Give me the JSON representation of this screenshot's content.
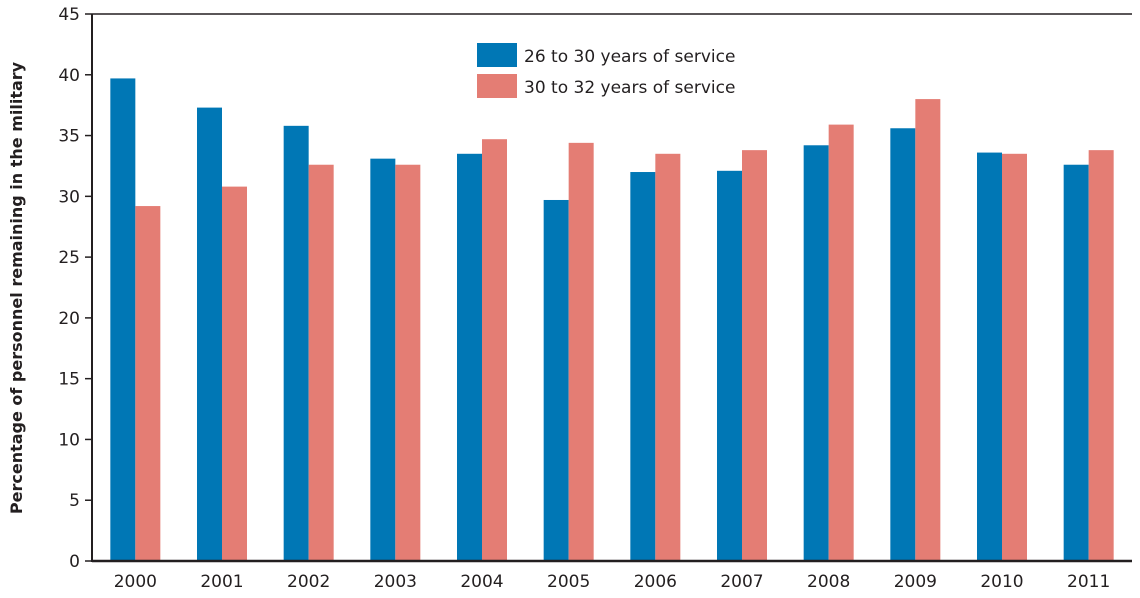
{
  "chart_data": {
    "type": "bar",
    "title": "",
    "xlabel": "",
    "ylabel": "Percentage of personnel remaining in the military",
    "ylim": [
      0,
      45
    ],
    "yticks": [
      0,
      5,
      10,
      15,
      20,
      25,
      30,
      35,
      40,
      45
    ],
    "grid": false,
    "legend_position": "top-center",
    "categories": [
      "2000",
      "2001",
      "2002",
      "2003",
      "2004",
      "2005",
      "2006",
      "2007",
      "2008",
      "2009",
      "2010",
      "2011"
    ],
    "series": [
      {
        "name": "26 to 30 years of service",
        "color": "#0077b5",
        "values": [
          39.7,
          37.3,
          35.8,
          33.1,
          33.5,
          29.7,
          32.0,
          32.1,
          34.2,
          35.6,
          33.6,
          32.6
        ]
      },
      {
        "name": "30 to 32 years of service",
        "color": "#e47d74",
        "values": [
          29.2,
          30.8,
          32.6,
          32.6,
          34.7,
          34.4,
          33.5,
          33.8,
          35.9,
          38.0,
          33.5,
          33.8
        ]
      }
    ]
  }
}
